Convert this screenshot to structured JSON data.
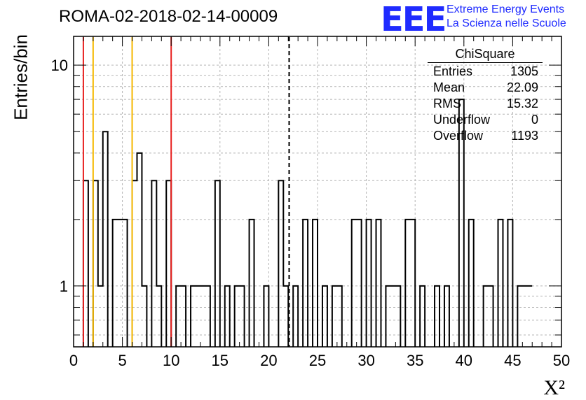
{
  "header": {
    "title": "ROMA-02-2018-02-14-00009",
    "logo_text": "EEE",
    "logo_line1": "Extreme Energy Events",
    "logo_line2": "La Scienza nelle Scuole"
  },
  "stats_box": {
    "name": "ChiSquare",
    "rows": [
      {
        "label": "Entries",
        "value": "1305"
      },
      {
        "label": "Mean",
        "value": "22.09"
      },
      {
        "label": "RMS",
        "value": "15.32"
      },
      {
        "label": "Underflow",
        "value": "0"
      },
      {
        "label": "Overflow",
        "value": "1193"
      }
    ]
  },
  "colors": {
    "histogram": "#000000",
    "red_lines": "#e8211f",
    "orange_lines": "#f5b800",
    "grid": "#b4b4b4",
    "logo": "#1f2bff"
  },
  "chart_data": {
    "type": "bar",
    "style": "step-histogram",
    "title": "ROMA-02-2018-02-14-00009",
    "xlabel": "X²",
    "ylabel": "Entries/bin",
    "xlim": [
      0,
      50
    ],
    "ylim": [
      0.53,
      13.5
    ],
    "yscale": "log",
    "grid": true,
    "bin_width": 0.5,
    "x_ticks": [
      "0",
      "5",
      "10",
      "15",
      "20",
      "25",
      "30",
      "35",
      "40",
      "45",
      "50"
    ],
    "y_ticks": [
      "1",
      "10"
    ],
    "values": [
      0,
      0,
      3,
      0,
      3,
      1,
      5,
      0,
      2,
      2,
      2,
      0,
      3,
      4,
      1,
      0,
      3,
      1,
      0,
      3,
      0,
      1,
      1,
      0,
      1,
      1,
      1,
      1,
      0,
      3,
      0,
      1,
      0,
      1,
      1,
      0,
      2,
      0,
      0,
      1,
      0,
      0,
      3,
      1,
      0,
      1,
      0,
      2,
      0,
      2,
      0,
      1,
      0,
      1,
      1,
      0,
      0,
      2,
      2,
      0,
      2,
      0,
      2,
      0,
      1,
      1,
      1,
      0,
      2,
      2,
      0,
      1,
      0,
      0,
      1,
      0,
      1,
      0,
      0,
      7,
      0,
      2,
      0,
      0,
      1,
      1,
      0,
      2,
      0,
      2,
      0,
      1,
      1,
      1
    ],
    "vertical_lines": [
      {
        "x": 1.0,
        "color": "red",
        "style": "solid"
      },
      {
        "x": 2.0,
        "color": "orange",
        "style": "solid"
      },
      {
        "x": 6.0,
        "color": "orange",
        "style": "solid"
      },
      {
        "x": 10.0,
        "color": "red",
        "style": "solid"
      },
      {
        "x": 22.09,
        "color": "black",
        "style": "dashed"
      }
    ]
  }
}
